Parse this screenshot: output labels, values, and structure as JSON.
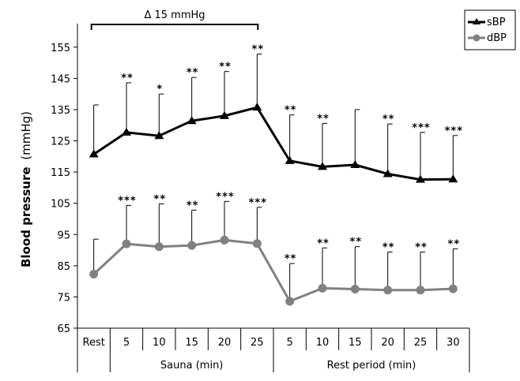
{
  "chart_data": {
    "type": "line",
    "ylabel_bold": "Blood pressure",
    "ylabel_unit": "(mmHg)",
    "ylim": [
      65,
      160
    ],
    "yticks": [
      65,
      75,
      85,
      95,
      105,
      115,
      125,
      135,
      145,
      155
    ],
    "categories": [
      "Rest",
      "5",
      "10",
      "15",
      "20",
      "25",
      "5",
      "10",
      "15",
      "20",
      "25",
      "30"
    ],
    "groups": [
      {
        "label": "Sauna (min)",
        "from": 1,
        "to": 5
      },
      {
        "label": "Rest period (min)",
        "from": 6,
        "to": 11
      }
    ],
    "bracket_label": "Δ 15 mmHg",
    "legend_position": "top-right",
    "series": [
      {
        "name": "sBP",
        "color": "#000000",
        "marker": "triangle",
        "values": [
          120.7,
          127.7,
          126.6,
          131.4,
          133.0,
          135.7,
          118.6,
          116.7,
          117.3,
          114.4,
          112.6,
          112.7
        ],
        "error_upper": [
          136.5,
          143.6,
          140.0,
          145.3,
          147.2,
          152.8,
          133.3,
          130.6,
          135.0,
          130.4,
          127.7,
          126.7
        ],
        "significance": [
          "",
          "**",
          "*",
          "**",
          "**",
          "**",
          "**",
          "**",
          "",
          "**",
          "***",
          "***"
        ]
      },
      {
        "name": "dBP",
        "color": "#808080",
        "marker": "circle",
        "values": [
          82.3,
          92.0,
          91.1,
          91.5,
          93.2,
          92.1,
          73.6,
          77.8,
          77.5,
          77.2,
          77.2,
          77.6
        ],
        "error_upper": [
          93.5,
          104.3,
          104.8,
          102.8,
          105.6,
          103.7,
          85.7,
          90.7,
          91.1,
          89.4,
          89.4,
          90.4
        ],
        "significance": [
          "",
          "***",
          "**",
          "**",
          "***",
          "***",
          "**",
          "**",
          "**",
          "**",
          "**",
          "**"
        ]
      }
    ]
  }
}
